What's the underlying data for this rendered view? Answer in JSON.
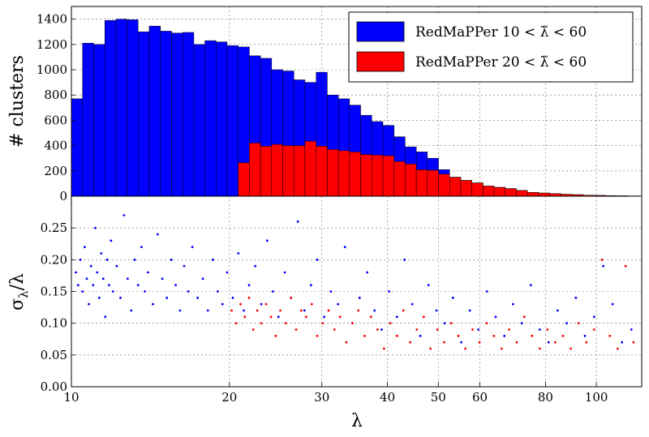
{
  "chart_data": [
    {
      "type": "bar",
      "panel": "top",
      "ylabel": "# clusters",
      "ylim": [
        0,
        1500
      ],
      "yticks": [
        "0",
        "200",
        "400",
        "600",
        "800",
        "1000",
        "1200",
        "1400"
      ],
      "xscale": "log",
      "xlim": [
        10,
        122
      ],
      "grid": true,
      "legend_position": "top-right",
      "bin_edges": [
        10.0,
        10.5,
        11.03,
        11.58,
        12.16,
        12.76,
        13.4,
        14.07,
        14.78,
        15.52,
        16.29,
        17.11,
        17.96,
        18.86,
        19.8,
        20.79,
        21.83,
        22.92,
        24.07,
        25.27,
        26.54,
        27.86,
        29.26,
        30.72,
        32.26,
        33.87,
        35.56,
        37.34,
        39.21,
        41.17,
        43.22,
        45.39,
        47.66,
        50.04,
        52.54,
        55.17,
        57.93,
        60.82,
        63.86,
        67.06,
        70.41,
        73.93,
        77.63,
        81.51,
        85.59,
        89.86,
        94.36,
        99.07,
        104.03,
        109.23,
        114.69,
        120.42
      ],
      "series": [
        {
          "name": "RedMaPPer 10 < λ̃ < 60",
          "color": "#0000ff",
          "values": [
            770,
            1210,
            1200,
            1390,
            1400,
            1395,
            1300,
            1345,
            1305,
            1290,
            1295,
            1200,
            1230,
            1220,
            1190,
            1180,
            1110,
            1090,
            1000,
            990,
            920,
            900,
            980,
            800,
            770,
            720,
            640,
            590,
            560,
            470,
            390,
            350,
            300,
            210,
            150,
            125,
            105,
            80,
            70,
            60,
            45,
            30,
            25,
            20,
            15,
            12,
            8,
            6,
            4,
            3,
            2
          ]
        },
        {
          "name": "RedMaPPer 20 < λ̃ < 60",
          "color": "#ff0000",
          "values": [
            0,
            0,
            0,
            0,
            0,
            0,
            0,
            0,
            0,
            0,
            0,
            0,
            0,
            0,
            0,
            265,
            420,
            395,
            410,
            400,
            400,
            435,
            395,
            370,
            360,
            350,
            330,
            325,
            320,
            275,
            255,
            210,
            205,
            175,
            150,
            125,
            105,
            80,
            70,
            60,
            45,
            30,
            25,
            20,
            15,
            12,
            8,
            6,
            4,
            3,
            2
          ]
        }
      ]
    },
    {
      "type": "scatter",
      "panel": "bottom",
      "xlabel": "λ",
      "ylabel": "σλ/λ",
      "ylabel_main": "σ",
      "ylabel_sub": "λ",
      "ylabel_rest": "/λ",
      "xscale": "log",
      "xlim": [
        10,
        122
      ],
      "ylim": [
        0,
        0.3
      ],
      "xticks": [
        "10",
        "20",
        "30",
        "40",
        "50",
        "60",
        "80",
        "100"
      ],
      "yticks": [
        "0.00",
        "0.05",
        "0.10",
        "0.15",
        "0.20",
        "0.25"
      ],
      "grid": true,
      "series": [
        {
          "name": "RedMaPPer 10 < λ̃ < 60",
          "color": "#0000ff",
          "points": [
            [
              10.2,
              0.18
            ],
            [
              10.3,
              0.16
            ],
            [
              10.4,
              0.2
            ],
            [
              10.5,
              0.15
            ],
            [
              10.6,
              0.22
            ],
            [
              10.7,
              0.17
            ],
            [
              10.8,
              0.13
            ],
            [
              10.9,
              0.19
            ],
            [
              11.0,
              0.16
            ],
            [
              11.1,
              0.25
            ],
            [
              11.2,
              0.18
            ],
            [
              11.3,
              0.14
            ],
            [
              11.4,
              0.21
            ],
            [
              11.5,
              0.17
            ],
            [
              11.6,
              0.11
            ],
            [
              11.7,
              0.2
            ],
            [
              11.8,
              0.16
            ],
            [
              11.9,
              0.23
            ],
            [
              12.0,
              0.15
            ],
            [
              12.2,
              0.19
            ],
            [
              12.4,
              0.14
            ],
            [
              12.6,
              0.27
            ],
            [
              12.8,
              0.17
            ],
            [
              13.0,
              0.12
            ],
            [
              13.2,
              0.2
            ],
            [
              13.4,
              0.16
            ],
            [
              13.6,
              0.22
            ],
            [
              13.8,
              0.15
            ],
            [
              14.0,
              0.18
            ],
            [
              14.3,
              0.13
            ],
            [
              14.6,
              0.24
            ],
            [
              14.9,
              0.17
            ],
            [
              15.2,
              0.14
            ],
            [
              15.5,
              0.2
            ],
            [
              15.8,
              0.16
            ],
            [
              16.1,
              0.12
            ],
            [
              16.4,
              0.19
            ],
            [
              16.7,
              0.15
            ],
            [
              17.0,
              0.22
            ],
            [
              17.4,
              0.14
            ],
            [
              17.8,
              0.17
            ],
            [
              18.2,
              0.12
            ],
            [
              18.6,
              0.2
            ],
            [
              19.0,
              0.15
            ],
            [
              19.4,
              0.13
            ],
            [
              19.8,
              0.18
            ],
            [
              20.3,
              0.14
            ],
            [
              20.8,
              0.21
            ],
            [
              21.3,
              0.12
            ],
            [
              21.8,
              0.16
            ],
            [
              22.4,
              0.19
            ],
            [
              23.0,
              0.13
            ],
            [
              23.6,
              0.23
            ],
            [
              24.2,
              0.15
            ],
            [
              24.8,
              0.11
            ],
            [
              25.5,
              0.18
            ],
            [
              26.2,
              0.14
            ],
            [
              27.0,
              0.26
            ],
            [
              27.8,
              0.12
            ],
            [
              28.6,
              0.16
            ],
            [
              29.4,
              0.2
            ],
            [
              30.3,
              0.11
            ],
            [
              31.2,
              0.15
            ],
            [
              32.2,
              0.13
            ],
            [
              33.2,
              0.22
            ],
            [
              34.3,
              0.1
            ],
            [
              35.4,
              0.14
            ],
            [
              36.6,
              0.18
            ],
            [
              37.8,
              0.12
            ],
            [
              39.0,
              0.09
            ],
            [
              40.3,
              0.15
            ],
            [
              41.7,
              0.11
            ],
            [
              43.1,
              0.2
            ],
            [
              44.6,
              0.13
            ],
            [
              46.2,
              0.08
            ],
            [
              47.9,
              0.16
            ],
            [
              49.6,
              0.12
            ],
            [
              51.4,
              0.1
            ],
            [
              53.3,
              0.14
            ],
            [
              55.3,
              0.07
            ],
            [
              57.4,
              0.12
            ],
            [
              59.6,
              0.09
            ],
            [
              61.9,
              0.15
            ],
            [
              64.3,
              0.11
            ],
            [
              66.8,
              0.08
            ],
            [
              69.4,
              0.13
            ],
            [
              72.1,
              0.1
            ],
            [
              75.0,
              0.16
            ],
            [
              78.0,
              0.09
            ],
            [
              81.1,
              0.07
            ],
            [
              84.4,
              0.12
            ],
            [
              87.8,
              0.1
            ],
            [
              91.4,
              0.14
            ],
            [
              95.1,
              0.08
            ],
            [
              99.0,
              0.11
            ],
            [
              103.1,
              0.19
            ],
            [
              107.4,
              0.13
            ],
            [
              111.9,
              0.07
            ],
            [
              116.6,
              0.09
            ]
          ]
        },
        {
          "name": "RedMaPPer 20 < λ̃ < 60",
          "color": "#ff0000",
          "points": [
            [
              20.2,
              0.12
            ],
            [
              20.6,
              0.1
            ],
            [
              21.0,
              0.13
            ],
            [
              21.4,
              0.11
            ],
            [
              21.8,
              0.14
            ],
            [
              22.2,
              0.09
            ],
            [
              22.6,
              0.12
            ],
            [
              23.0,
              0.1
            ],
            [
              23.5,
              0.13
            ],
            [
              24.0,
              0.11
            ],
            [
              24.5,
              0.08
            ],
            [
              25.0,
              0.12
            ],
            [
              25.6,
              0.1
            ],
            [
              26.2,
              0.14
            ],
            [
              26.8,
              0.09
            ],
            [
              27.4,
              0.12
            ],
            [
              28.0,
              0.11
            ],
            [
              28.7,
              0.13
            ],
            [
              29.4,
              0.08
            ],
            [
              30.1,
              0.1
            ],
            [
              30.9,
              0.12
            ],
            [
              31.7,
              0.09
            ],
            [
              32.5,
              0.11
            ],
            [
              33.4,
              0.07
            ],
            [
              34.3,
              0.1
            ],
            [
              35.2,
              0.12
            ],
            [
              36.2,
              0.08
            ],
            [
              37.2,
              0.11
            ],
            [
              38.3,
              0.09
            ],
            [
              39.4,
              0.06
            ],
            [
              40.5,
              0.1
            ],
            [
              41.7,
              0.08
            ],
            [
              42.9,
              0.12
            ],
            [
              44.2,
              0.07
            ],
            [
              45.5,
              0.09
            ],
            [
              46.9,
              0.11
            ],
            [
              48.3,
              0.06
            ],
            [
              49.8,
              0.09
            ],
            [
              51.3,
              0.07
            ],
            [
              52.9,
              0.1
            ],
            [
              54.6,
              0.08
            ],
            [
              56.3,
              0.06
            ],
            [
              58.1,
              0.09
            ],
            [
              59.9,
              0.07
            ],
            [
              61.8,
              0.1
            ],
            [
              63.8,
              0.08
            ],
            [
              66.0,
              0.06
            ],
            [
              68.2,
              0.09
            ],
            [
              70.5,
              0.07
            ],
            [
              72.9,
              0.11
            ],
            [
              75.4,
              0.08
            ],
            [
              78.0,
              0.06
            ],
            [
              80.7,
              0.09
            ],
            [
              83.5,
              0.07
            ],
            [
              86.4,
              0.08
            ],
            [
              89.4,
              0.06
            ],
            [
              92.5,
              0.1
            ],
            [
              95.7,
              0.07
            ],
            [
              99.0,
              0.09
            ],
            [
              102.5,
              0.2
            ],
            [
              106.1,
              0.08
            ],
            [
              109.8,
              0.06
            ],
            [
              113.7,
              0.19
            ],
            [
              117.7,
              0.07
            ]
          ]
        }
      ]
    }
  ]
}
